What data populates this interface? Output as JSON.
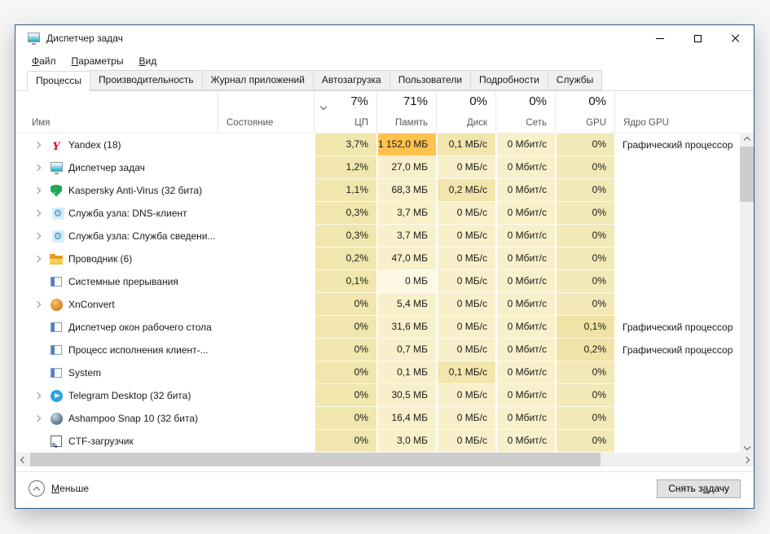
{
  "window": {
    "title": "Диспетчер задач"
  },
  "menu": {
    "items": [
      {
        "accel": "Ф",
        "rest": "айл"
      },
      {
        "accel": "П",
        "rest": "араметры"
      },
      {
        "accel": "В",
        "rest": "ид"
      }
    ]
  },
  "tabs": [
    {
      "label": "Процессы",
      "active": true
    },
    {
      "label": "Производительность",
      "active": false
    },
    {
      "label": "Журнал приложений",
      "active": false
    },
    {
      "label": "Автозагрузка",
      "active": false
    },
    {
      "label": "Пользователи",
      "active": false
    },
    {
      "label": "Подробности",
      "active": false
    },
    {
      "label": "Службы",
      "active": false
    }
  ],
  "table": {
    "header": {
      "name": "Имя",
      "status": "Состояние",
      "cpu_pct": "7%",
      "cpu": "ЦП",
      "mem_pct": "71%",
      "mem": "Память",
      "disk_pct": "0%",
      "disk": "Диск",
      "net_pct": "0%",
      "net": "Сеть",
      "gpu_pct": "0%",
      "gpu": "GPU",
      "engine": "Ядро GPU"
    },
    "rows": [
      {
        "name": "Yandex (18)",
        "icon": "yandex-icon",
        "cpu": "3,7%",
        "mem": "1 152,0 МБ",
        "disk": "0,1 МБ/с",
        "net": "0 Мбит/с",
        "gpu": "0%",
        "engine": "Графический процессор"
      },
      {
        "name": "Диспетчер задач",
        "icon": "task-manager-icon",
        "cpu": "1,2%",
        "mem": "27,0 МБ",
        "disk": "0 МБ/с",
        "net": "0 Мбит/с",
        "gpu": "0%",
        "engine": ""
      },
      {
        "name": "Kaspersky Anti-Virus (32 бита)",
        "icon": "kaspersky-shield-icon",
        "cpu": "1,1%",
        "mem": "68,3 МБ",
        "disk": "0,2 МБ/с",
        "net": "0 Мбит/с",
        "gpu": "0%",
        "engine": ""
      },
      {
        "name": "Служба узла: DNS-клиент",
        "icon": "service-gear-icon",
        "cpu": "0,3%",
        "mem": "3,7 МБ",
        "disk": "0 МБ/с",
        "net": "0 Мбит/с",
        "gpu": "0%",
        "engine": ""
      },
      {
        "name": "Служба узла: Служба сведени...",
        "icon": "service-gear-icon",
        "cpu": "0,3%",
        "mem": "3,7 МБ",
        "disk": "0 МБ/с",
        "net": "0 Мбит/с",
        "gpu": "0%",
        "engine": ""
      },
      {
        "name": "Проводник (6)",
        "icon": "explorer-folder-icon",
        "cpu": "0,2%",
        "mem": "47,0 МБ",
        "disk": "0 МБ/с",
        "net": "0 Мбит/с",
        "gpu": "0%",
        "engine": ""
      },
      {
        "name": "Системные прерывания",
        "icon": "system-window-icon",
        "cpu": "0,1%",
        "mem": "0 МБ",
        "disk": "0 МБ/с",
        "net": "0 Мбит/с",
        "gpu": "0%",
        "engine": ""
      },
      {
        "name": "XnConvert",
        "icon": "xnconvert-icon",
        "cpu": "0%",
        "mem": "5,4 МБ",
        "disk": "0 МБ/с",
        "net": "0 Мбит/с",
        "gpu": "0%",
        "engine": ""
      },
      {
        "name": "Диспетчер окон рабочего стола",
        "icon": "system-window-icon",
        "cpu": "0%",
        "mem": "31,6 МБ",
        "disk": "0 МБ/с",
        "net": "0 Мбит/с",
        "gpu": "0,1%",
        "engine": "Графический процессор"
      },
      {
        "name": "Процесс исполнения клиент-...",
        "icon": "system-window-icon",
        "cpu": "0%",
        "mem": "0,7 МБ",
        "disk": "0 МБ/с",
        "net": "0 Мбит/с",
        "gpu": "0,2%",
        "engine": "Графический процессор"
      },
      {
        "name": "System",
        "icon": "system-window-icon",
        "cpu": "0%",
        "mem": "0,1 МБ",
        "disk": "0,1 МБ/с",
        "net": "0 Мбит/с",
        "gpu": "0%",
        "engine": ""
      },
      {
        "name": "Telegram Desktop (32 бита)",
        "icon": "telegram-icon",
        "cpu": "0%",
        "mem": "30,5 МБ",
        "disk": "0 МБ/с",
        "net": "0 Мбит/с",
        "gpu": "0%",
        "engine": ""
      },
      {
        "name": "Ashampoo Snap 10 (32 бита)",
        "icon": "ashampoo-icon",
        "cpu": "0%",
        "mem": "16,4 МБ",
        "disk": "0 МБ/с",
        "net": "0 Мбит/с",
        "gpu": "0%",
        "engine": ""
      },
      {
        "name": "CTF-загрузчик",
        "icon": "ctf-pen-icon",
        "cpu": "0%",
        "mem": "3,0 МБ",
        "disk": "0 МБ/с",
        "net": "0 Мбит/с",
        "gpu": "0%",
        "engine": ""
      }
    ]
  },
  "footer": {
    "less": {
      "accel": "М",
      "rest": "еньше"
    },
    "end_task": {
      "pre": "Снять з",
      "accel": "а",
      "rest": "дачу"
    }
  },
  "colors": {
    "window_border": "#2f5a83",
    "heat_cpu": "#f1e6ad",
    "heat_light": "#f8f0ca",
    "heat_mid": "#f2e6ae",
    "heat_faint": "#fdf8e3",
    "heat_gpu": "#f3e9b6",
    "heat_hot": "#ffc24d",
    "tab_inactive_bg": "#f0f0f0",
    "scrollbar_thumb": "#cdcdcd"
  }
}
